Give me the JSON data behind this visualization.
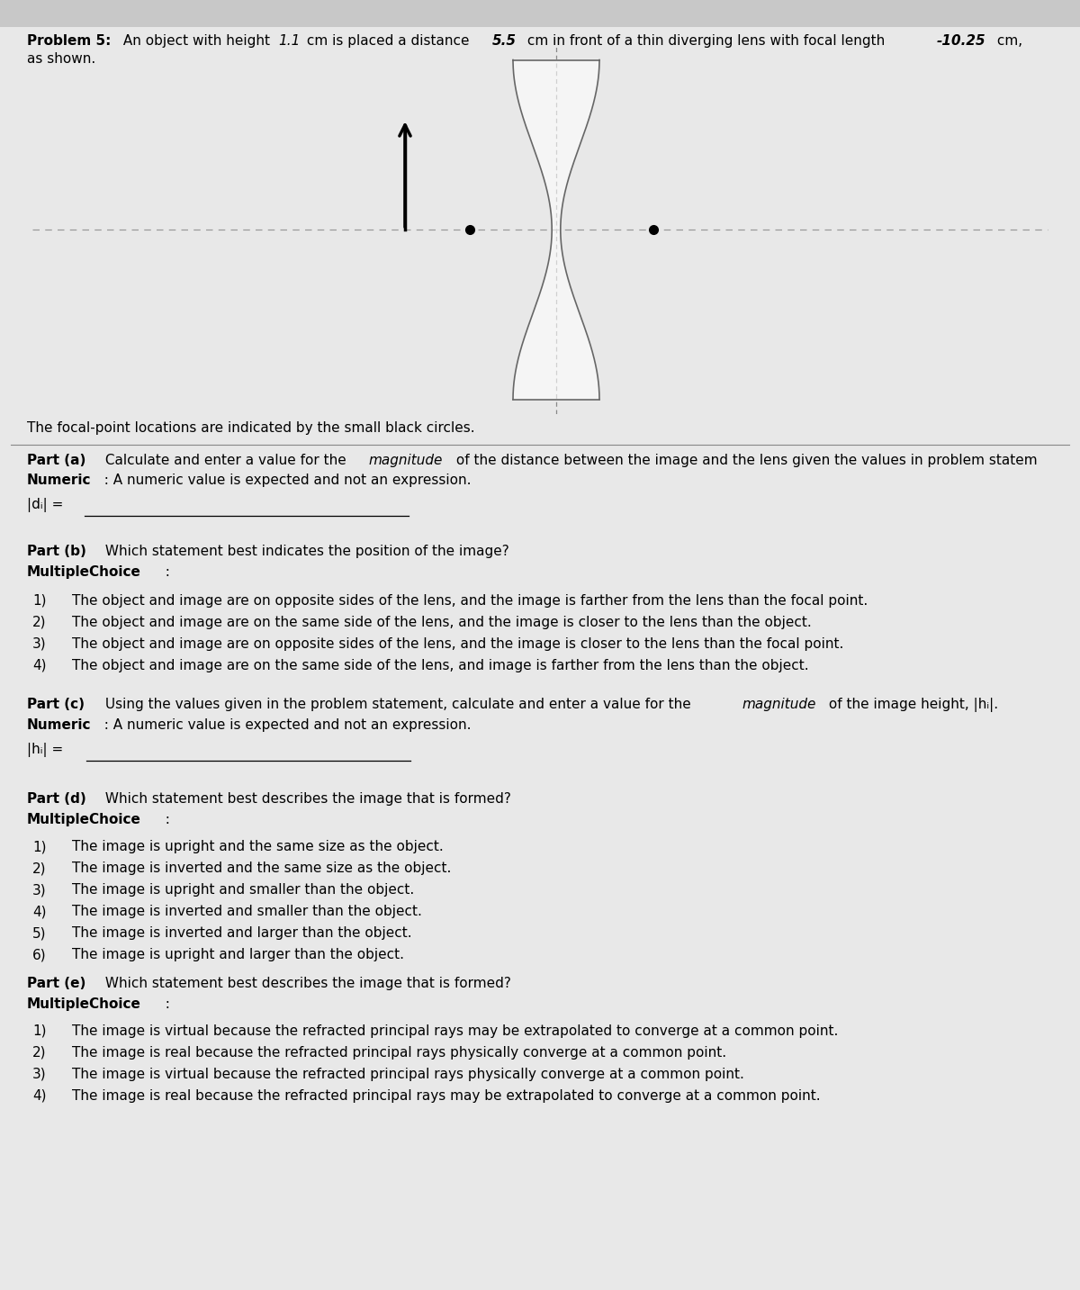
{
  "background_color": "#c8c8c8",
  "page_bg": "#e8e8e8",
  "title_bold": "Problem 5:",
  "title_rest": " An object with height ",
  "val_h": "1.1",
  "title_mid": " cm is placed a distance ",
  "val_d": "5.5",
  "title_mid2": " cm in front of a thin diverging lens with focal length ",
  "val_f": "-10.25",
  "title_end": " cm,",
  "title_line2": "as shown.",
  "focal_caption": "The focal-point locations are indicated by the small black circles.",
  "part_a_q": "Part (a)",
  "part_a_text1": " Calculate and enter a value for the ",
  "part_a_italic": "magnitude",
  "part_a_text2": " of the distance between the image and the lens given the values in problem statem",
  "numeric_label": "Numeric",
  "numeric_text": "  : A numeric value is expected and not an expression.",
  "answer_a": "|dᵢ| =",
  "part_b_q": "Part (b)",
  "part_b_text": " Which statement best indicates the position of the image?",
  "mc_label": "MultipleChoice",
  "mc_colon": "  :",
  "choices_b": [
    "The object and image are on opposite sides of the lens, and the image is farther from the lens than the focal point.",
    "The object and image are on the same side of the lens, and the image is closer to the lens than the object.",
    "The object and image are on opposite sides of the lens, and the image is closer to the lens than the focal point.",
    "The object and image are on the same side of the lens, and image is farther from the lens than the object."
  ],
  "part_c_q": "Part (c)",
  "part_c_text1": " Using the values given in the problem statement, calculate and enter a value for the ",
  "part_c_italic": "magnitude",
  "part_c_text2": " of the image height, |hᵢ|.",
  "answer_c": "|hᵢ| =",
  "part_d_q": "Part (d)",
  "part_d_text": " Which statement best describes the image that is formed?",
  "choices_d": [
    "The image is upright and the same size as the object.",
    "The image is inverted and the same size as the object.",
    "The image is upright and smaller than the object.",
    "The image is inverted and smaller than the object.",
    "The image is inverted and larger than the object.",
    "The image is upright and larger than the object."
  ],
  "part_e_q": "Part (e)",
  "part_e_text": " Which statement best describes the image that is formed?",
  "choices_e": [
    "The image is virtual because the refracted principal rays may be extrapolated to converge at a common point.",
    "The image is real because the refracted principal rays physically converge at a common point.",
    "The image is virtual because the refracted principal rays physically converge at a common point.",
    "The image is real because the refracted principal rays may be extrapolated to converge at a common point."
  ],
  "fs": 11.0,
  "lm": 0.025
}
